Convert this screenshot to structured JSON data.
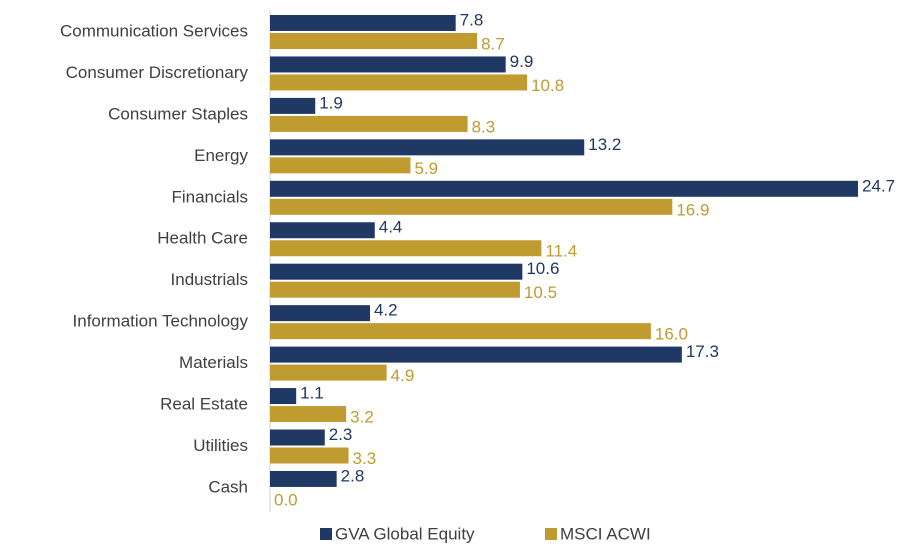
{
  "chart_data": {
    "type": "hbar",
    "categories": [
      "Communication Services",
      "Consumer Discretionary",
      "Consumer Staples",
      "Energy",
      "Financials",
      "Health Care",
      "Industrials",
      "Information Technology",
      "Materials",
      "Real Estate",
      "Utilities",
      "Cash"
    ],
    "series": [
      {
        "name": "GVA Global Equity",
        "color": "#1f3864",
        "values": [
          7.8,
          9.9,
          1.9,
          13.2,
          24.7,
          4.4,
          10.6,
          4.2,
          17.3,
          1.1,
          2.3,
          2.8
        ],
        "value_labels": [
          "7.8",
          "9.9",
          "1.9",
          "13.2",
          "24.7",
          "4.4",
          "10.6",
          "4.2",
          "17.3",
          "1.1",
          "2.3",
          "2.8"
        ]
      },
      {
        "name": "MSCI ACWI",
        "color": "#bf9b30",
        "values": [
          8.7,
          10.8,
          8.3,
          5.9,
          16.9,
          11.4,
          10.5,
          16.0,
          4.9,
          3.2,
          3.3,
          0.0
        ],
        "value_labels": [
          "8.7",
          "10.8",
          "8.3",
          "5.9",
          "16.9",
          "11.4",
          "10.5",
          "16.0",
          "4.9",
          "3.2",
          "3.3",
          "0.0"
        ]
      }
    ],
    "legend": "bottom"
  }
}
